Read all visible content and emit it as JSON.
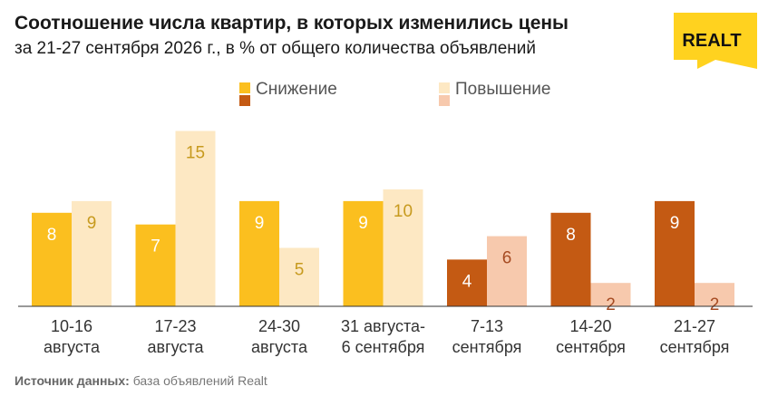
{
  "title": "Соотношение числа квартир, в которых изменились цены",
  "subtitle": "за 21-27 сентября 2026 г., в % от общего количества объявлений",
  "logo": {
    "text": "REALT",
    "color": "#ffd21f"
  },
  "source": {
    "label": "Источник данных:",
    "text": "база объявлений Realt"
  },
  "chart_data": {
    "type": "bar",
    "title": "Соотношение числа квартир, в которых изменились цены",
    "subtitle": "за 21-27 сентября 2026 г., в % от общего количества объявлений",
    "legend_position": "top",
    "grid": false,
    "ylim": [
      0,
      16
    ],
    "categories": [
      [
        "10-16",
        "августа"
      ],
      [
        "17-23",
        "августа"
      ],
      [
        "24-30",
        "августа"
      ],
      [
        "31 августа-",
        "6 сентября"
      ],
      [
        "7-13",
        "сентября"
      ],
      [
        "14-20",
        "сентября"
      ],
      [
        "21-27",
        "сентября"
      ]
    ],
    "series": [
      {
        "name": "Снижение",
        "values": [
          8,
          7,
          9,
          9,
          4,
          8,
          9
        ],
        "colors": [
          "#fbbf1f",
          "#fbbf1f",
          "#fbbf1f",
          "#fbbf1f",
          "#c45a13",
          "#c45a13",
          "#c45a13"
        ],
        "label_colors": [
          "#ffffff",
          "#ffffff",
          "#ffffff",
          "#ffffff",
          "#ffffff",
          "#ffffff",
          "#ffffff"
        ],
        "legend_colors": [
          "#fbbf1f",
          "#c45a13"
        ]
      },
      {
        "name": "Повышение",
        "values": [
          9,
          15,
          5,
          10,
          6,
          2,
          2
        ],
        "colors": [
          "#fde8c3",
          "#fde8c3",
          "#fde8c3",
          "#fde8c3",
          "#f7c9ad",
          "#f7c9ad",
          "#f7c9ad"
        ],
        "label_colors": [
          "#c79a1e",
          "#c79a1e",
          "#c79a1e",
          "#c79a1e",
          "#a64b22",
          "#a64b22",
          "#a64b22"
        ],
        "legend_colors": [
          "#fde8c3",
          "#f7c9ad"
        ]
      }
    ]
  }
}
